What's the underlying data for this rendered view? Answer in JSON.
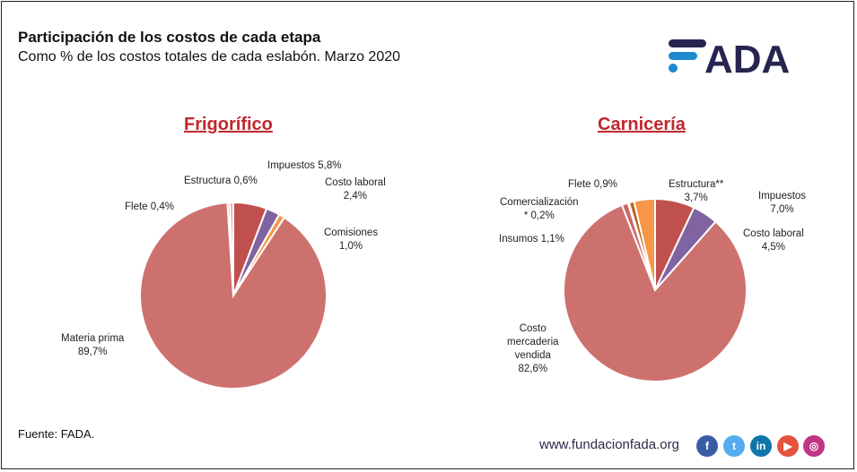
{
  "header": {
    "title": "Participación de los costos de cada etapa",
    "subtitle": "Como % de los costos totales de cada eslabón. Marzo 2020"
  },
  "logo": {
    "text": "FADA",
    "color": "#262550",
    "accent": "#1e88d0"
  },
  "chart_data": [
    {
      "type": "pie",
      "title": "Frigorífico",
      "start": "top",
      "direction": "clockwise",
      "slices": [
        {
          "label": "Impuestos",
          "value": 5.8,
          "display": "Impuestos 5,8%",
          "color": "#c0504d"
        },
        {
          "label": "Costo laboral",
          "value": 2.4,
          "display": "2,4%",
          "color": "#8064a2"
        },
        {
          "label": "Comisiones",
          "value": 1.0,
          "display": "1,0%",
          "color": "#f79646"
        },
        {
          "label": "Materia prima",
          "value": 89.7,
          "display": "89,7%",
          "color": "#cd716f"
        },
        {
          "label": "Flete",
          "value": 0.4,
          "display": "Flete 0,4%",
          "color": "#d4837f"
        },
        {
          "label": "Estructura",
          "value": 0.6,
          "display": "Estructura 0,6%",
          "color": "#e6aaa6"
        }
      ]
    },
    {
      "type": "pie",
      "title": "Carnicería",
      "start": "top",
      "direction": "clockwise",
      "slices": [
        {
          "label": "Impuestos",
          "value": 7.0,
          "display": "7,0%",
          "color": "#c0504d"
        },
        {
          "label": "Costo laboral",
          "value": 4.5,
          "display": "4,5%",
          "color": "#8064a2"
        },
        {
          "label": "Costo mercaderia vendida",
          "value": 82.6,
          "display": "82,6%",
          "color": "#cd716f"
        },
        {
          "label": "Insumos",
          "value": 1.1,
          "display": "Insumos 1,1%",
          "color": "#c96866"
        },
        {
          "label": "Comercialización *",
          "value": 0.2,
          "display": "* 0,2%",
          "color": "#7b2a2a"
        },
        {
          "label": "Flete",
          "value": 0.9,
          "display": "Flete 0,9%",
          "color": "#b5651d"
        },
        {
          "label": "Estructura**",
          "value": 3.7,
          "display": "3,7%",
          "color": "#f79646"
        }
      ]
    }
  ],
  "labels": {
    "frig": {
      "impuestos": "Impuestos 5,8%",
      "estructura": "Estructura 0,6%",
      "flete": "Flete 0,4%",
      "laboral1": "Costo laboral",
      "laboral2": "2,4%",
      "comisiones1": "Comisiones",
      "comisiones2": "1,0%",
      "materia1": "Materia prima",
      "materia2": "89,7%"
    },
    "carn": {
      "flete": "Flete 0,9%",
      "estructura1": "Estructura**",
      "estructura2": "3,7%",
      "comer1": "Comercialización",
      "comer2": "* 0,2%",
      "impuestos1": "Impuestos",
      "impuestos2": "7,0%",
      "insumos": "Insumos 1,1%",
      "laboral1": "Costo laboral",
      "laboral2": "4,5%",
      "cmv1": "Costo",
      "cmv2": "mercaderia",
      "cmv3": "vendida",
      "cmv4": "82,6%"
    }
  },
  "footer": {
    "source": "Fuente: FADA.",
    "url": "www.fundacionfada.org",
    "social": [
      {
        "name": "facebook",
        "glyph": "f",
        "color": "#3b5ba5"
      },
      {
        "name": "twitter",
        "glyph": "t",
        "color": "#55acee"
      },
      {
        "name": "linkedin",
        "glyph": "in",
        "color": "#0e76a8"
      },
      {
        "name": "youtube",
        "glyph": "▶",
        "color": "#e5533d"
      },
      {
        "name": "instagram",
        "glyph": "◎",
        "color": "#c13584"
      }
    ]
  }
}
